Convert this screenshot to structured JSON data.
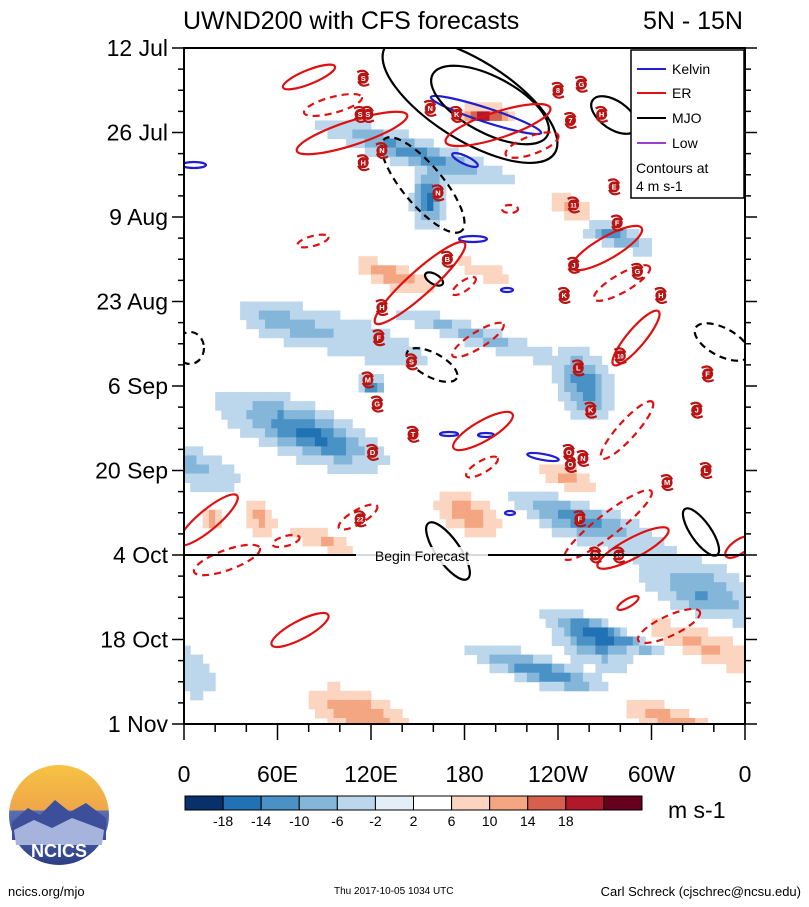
{
  "chart_data": {
    "type": "heatmap",
    "title": "UWND200 with CFS forecasts",
    "region": "5N - 15N",
    "xlabel": "",
    "ylabel": "",
    "x_ticks": [
      "0",
      "60E",
      "120E",
      "180",
      "120W",
      "60W",
      "0"
    ],
    "x_tick_values": [
      0,
      60,
      120,
      180,
      240,
      300,
      360
    ],
    "xlim": [
      0,
      360
    ],
    "y_ticks": [
      "12 Jul",
      "26 Jul",
      "9 Aug",
      "23 Aug",
      "6 Sep",
      "20 Sep",
      "4 Oct",
      "18 Oct",
      "1 Nov"
    ],
    "y_tick_days": [
      0,
      14,
      28,
      42,
      56,
      70,
      84,
      98,
      112
    ],
    "ylim_days": [
      0,
      112
    ],
    "forecast_start_day": 84,
    "forecast_label": "Begin Forecast",
    "legend": {
      "items": [
        {
          "label": "Kelvin",
          "color": "#1f1fd0"
        },
        {
          "label": "ER",
          "color": "#e01010"
        },
        {
          "label": "MJO",
          "color": "#000000"
        },
        {
          "label": "Low",
          "color": "#9a3fd0"
        }
      ],
      "note_line1": "Contours at",
      "note_line2": "4 m s-1"
    },
    "colorbar": {
      "levels": [
        "-18",
        "-14",
        "-10",
        "-6",
        "-2",
        "2",
        "6",
        "10",
        "14",
        "18"
      ],
      "colors": [
        "#08306b",
        "#2171b5",
        "#4a92c6",
        "#84b6da",
        "#bcd7ec",
        "#e4eef7",
        "#ffffff",
        "#fbd5c0",
        "#f4a582",
        "#d6604d",
        "#b2182b",
        "#67001f"
      ],
      "units": "m s-1"
    },
    "storms": [
      {
        "label": "S",
        "lon": 115,
        "day": 5
      },
      {
        "label": "N",
        "lon": 158,
        "day": 10
      },
      {
        "label": "K",
        "lon": 175,
        "day": 11
      },
      {
        "label": "8",
        "lon": 240,
        "day": 7
      },
      {
        "label": "G",
        "lon": 255,
        "day": 6
      },
      {
        "label": "H",
        "lon": 268,
        "day": 11
      },
      {
        "label": "S",
        "lon": 113,
        "day": 11
      },
      {
        "label": "S",
        "lon": 118,
        "day": 11
      },
      {
        "label": "7",
        "lon": 248,
        "day": 12
      },
      {
        "label": "N",
        "lon": 127,
        "day": 17
      },
      {
        "label": "H",
        "lon": 115,
        "day": 19
      },
      {
        "label": "N",
        "lon": 163,
        "day": 24
      },
      {
        "label": "E",
        "lon": 276,
        "day": 23
      },
      {
        "label": "11",
        "lon": 250,
        "day": 26
      },
      {
        "label": "F",
        "lon": 278,
        "day": 29
      },
      {
        "label": "B",
        "lon": 169,
        "day": 35
      },
      {
        "label": "J",
        "lon": 250,
        "day": 36
      },
      {
        "label": "G",
        "lon": 291,
        "day": 37
      },
      {
        "label": "K",
        "lon": 244,
        "day": 41
      },
      {
        "label": "H",
        "lon": 306,
        "day": 41
      },
      {
        "label": "H",
        "lon": 127,
        "day": 43
      },
      {
        "label": "F",
        "lon": 125,
        "day": 48
      },
      {
        "label": "S",
        "lon": 146,
        "day": 52
      },
      {
        "label": "10",
        "lon": 280,
        "day": 51
      },
      {
        "label": "L",
        "lon": 253,
        "day": 53
      },
      {
        "label": "F",
        "lon": 336,
        "day": 54
      },
      {
        "label": "M",
        "lon": 118,
        "day": 55
      },
      {
        "label": "G",
        "lon": 124,
        "day": 59
      },
      {
        "label": "K",
        "lon": 261,
        "day": 60
      },
      {
        "label": "J",
        "lon": 329,
        "day": 60
      },
      {
        "label": "T",
        "lon": 147,
        "day": 64
      },
      {
        "label": "D",
        "lon": 121,
        "day": 67
      },
      {
        "label": "O",
        "lon": 247,
        "day": 67
      },
      {
        "label": "N",
        "lon": 256,
        "day": 68
      },
      {
        "label": "O",
        "lon": 248,
        "day": 69
      },
      {
        "label": "L",
        "lon": 335,
        "day": 70
      },
      {
        "label": "M",
        "lon": 310,
        "day": 72
      },
      {
        "label": "22",
        "lon": 113,
        "day": 78
      },
      {
        "label": "F",
        "lon": 254,
        "day": 78
      },
      {
        "label": "R",
        "lon": 264,
        "day": 84
      },
      {
        "label": "16",
        "lon": 279,
        "day": 84
      }
    ]
  },
  "logo": {
    "text": "NCICS"
  },
  "footer": {
    "left": "ncics.org/mjo",
    "center": "Thu 2017-10-05 1034 UTC",
    "right": "Carl Schreck (cjschrec@ncsu.edu)"
  }
}
